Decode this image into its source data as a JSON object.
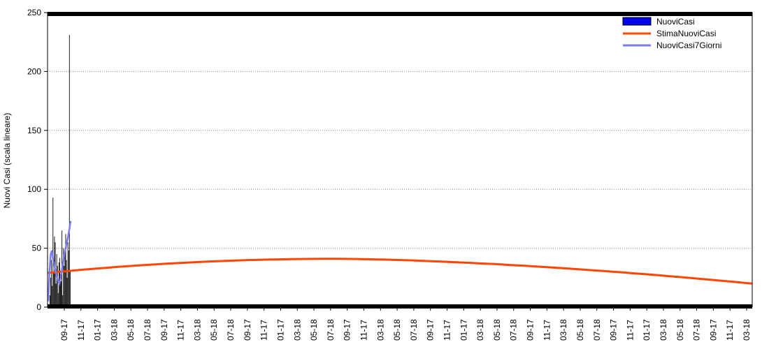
{
  "chart_data": {
    "type": "bar",
    "title": "",
    "ylabel": "Nuovi Casi (scala lineare)",
    "ylim": [
      0,
      250
    ],
    "yticks": [
      0,
      50,
      100,
      150,
      200,
      250
    ],
    "xtick_labels": [
      "09-17",
      "11-17",
      "01-17",
      "03-18",
      "05-18",
      "07-18",
      "09-17",
      "11-17",
      "03-18",
      "05-18",
      "07-18",
      "09-17",
      "11-17",
      "01-17",
      "03-18",
      "05-18",
      "07-18",
      "09-17",
      "11-17",
      "03-18",
      "05-18",
      "07-18",
      "09-17",
      "11-17",
      "01-17",
      "03-18",
      "05-18",
      "07-18",
      "09-17",
      "11-17",
      "03-18",
      "05-18",
      "07-18",
      "09-17",
      "11-17",
      "01-17",
      "03-18",
      "05-18",
      "07-18",
      "09-17",
      "11-17",
      "03-18"
    ],
    "grid": "horizontal-dotted",
    "legend_position": "top-right",
    "series": [
      {
        "name": "NuoviCasi",
        "type": "bar",
        "color": "#0000ee",
        "bar_color": "#000000",
        "values": [
          0,
          10,
          25,
          40,
          18,
          93,
          30,
          60,
          55,
          20,
          45,
          35,
          12,
          38,
          42,
          28,
          22,
          65,
          10,
          50,
          35,
          45,
          62,
          40,
          25,
          55,
          48,
          231,
          30
        ]
      },
      {
        "name": "StimaNuoviCasi",
        "type": "line",
        "color": "#ff4500",
        "start_value": 29,
        "peak_value": 41,
        "end_value": 20
      },
      {
        "name": "NuoviCasi7Giorni",
        "type": "line",
        "color": "#7b7bf0",
        "values": [
          5,
          30,
          45,
          48,
          40,
          35,
          30,
          25,
          22,
          20,
          25,
          32,
          38,
          45,
          50,
          55,
          60,
          66,
          73
        ]
      }
    ],
    "colors": {
      "frame": "#000000",
      "grid": "#8c8c8c"
    }
  }
}
